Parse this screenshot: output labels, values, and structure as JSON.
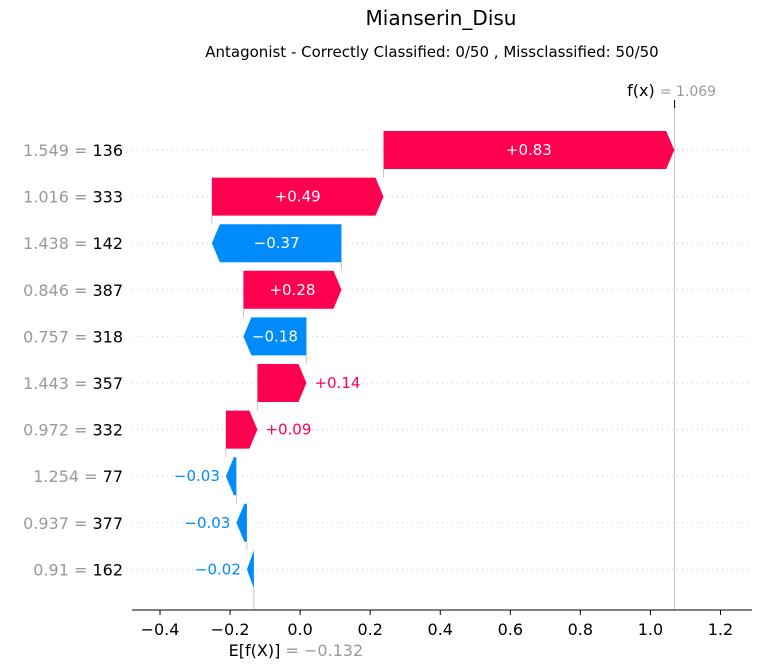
{
  "chart_data": {
    "type": "waterfall",
    "title": "Mianserin_Disu",
    "subtitle": "Antagonist - Correctly Classified: 0/50 , Missclassified: 50/50",
    "base_value": -0.132,
    "base_label": "E[f(X)]",
    "base_value_text": "= −0.132",
    "output_value": 1.069,
    "output_label": "f(x)",
    "output_value_text": "= 1.069",
    "xlim": [
      -0.48,
      1.29
    ],
    "xticks": [
      -0.4,
      -0.2,
      0.0,
      0.2,
      0.4,
      0.6,
      0.8,
      1.0,
      1.2
    ],
    "xtick_labels": [
      "−0.4",
      "−0.2",
      "0.0",
      "0.2",
      "0.4",
      "0.6",
      "0.8",
      "1.0",
      "1.2"
    ],
    "features": [
      {
        "value_text": "1.549 =",
        "name": "136",
        "contribution": 0.83,
        "label": "+0.83"
      },
      {
        "value_text": "1.016 =",
        "name": "333",
        "contribution": 0.49,
        "label": "+0.49"
      },
      {
        "value_text": "1.438 =",
        "name": "142",
        "contribution": -0.37,
        "label": "−0.37"
      },
      {
        "value_text": "0.846 =",
        "name": "387",
        "contribution": 0.28,
        "label": "+0.28"
      },
      {
        "value_text": "0.757 =",
        "name": "318",
        "contribution": -0.18,
        "label": "−0.18"
      },
      {
        "value_text": "1.443 =",
        "name": "357",
        "contribution": 0.14,
        "label": "+0.14"
      },
      {
        "value_text": "0.972 =",
        "name": "332",
        "contribution": 0.09,
        "label": "+0.09"
      },
      {
        "value_text": "1.254 =",
        "name": "77",
        "contribution": -0.03,
        "label": "−0.03"
      },
      {
        "value_text": "0.937 =",
        "name": "377",
        "contribution": -0.03,
        "label": "−0.03"
      },
      {
        "value_text": "0.91 =",
        "name": "162",
        "contribution": -0.02,
        "label": "−0.02"
      }
    ],
    "colors": {
      "positive": "#ff0051",
      "negative": "#008bfb",
      "value_text": "#999999"
    }
  }
}
